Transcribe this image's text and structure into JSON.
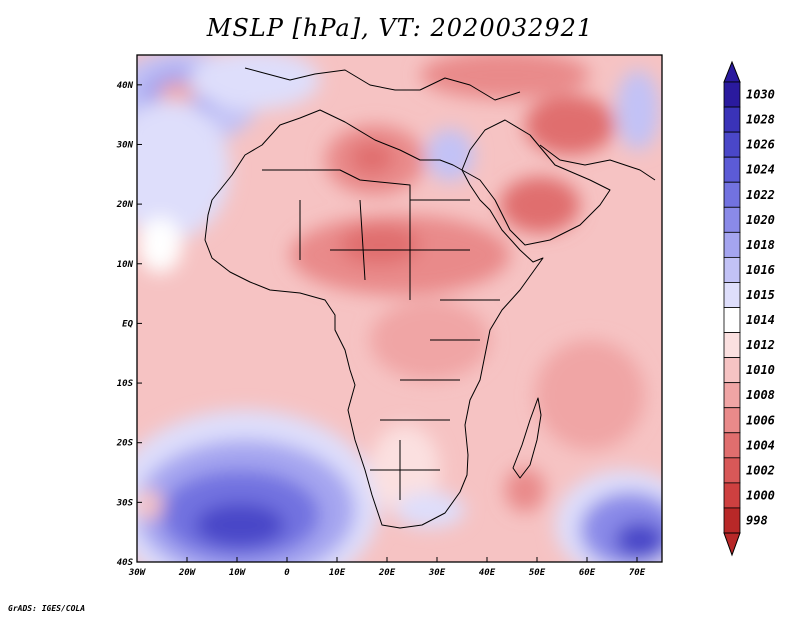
{
  "title": "MSLP [hPa], VT: 2020032921",
  "credit": "GrADS: IGES/COLA",
  "map": {
    "projection": "latlon",
    "lon_range": [
      -30,
      75
    ],
    "lat_range": [
      -40,
      45
    ],
    "lon_ticks": [
      {
        "value": -30,
        "label": "30W"
      },
      {
        "value": -20,
        "label": "20W"
      },
      {
        "value": -10,
        "label": "10W"
      },
      {
        "value": 0,
        "label": "0"
      },
      {
        "value": 10,
        "label": "10E"
      },
      {
        "value": 20,
        "label": "20E"
      },
      {
        "value": 30,
        "label": "30E"
      },
      {
        "value": 40,
        "label": "40E"
      },
      {
        "value": 50,
        "label": "50E"
      },
      {
        "value": 60,
        "label": "60E"
      },
      {
        "value": 70,
        "label": "70E"
      }
    ],
    "lat_ticks": [
      {
        "value": 40,
        "label": "40N"
      },
      {
        "value": 30,
        "label": "30N"
      },
      {
        "value": 20,
        "label": "20N"
      },
      {
        "value": 10,
        "label": "10N"
      },
      {
        "value": 0,
        "label": "EQ"
      },
      {
        "value": -10,
        "label": "10S"
      },
      {
        "value": -20,
        "label": "20S"
      },
      {
        "value": -30,
        "label": "30S"
      },
      {
        "value": -40,
        "label": "40S"
      }
    ]
  },
  "colorbar": {
    "levels": [
      {
        "label": "1030",
        "color": "#2a1a9e"
      },
      {
        "label": "1028",
        "color": "#3a33b8"
      },
      {
        "label": "1026",
        "color": "#4a47c8"
      },
      {
        "label": "1024",
        "color": "#5c5bd6"
      },
      {
        "label": "1022",
        "color": "#7272e0"
      },
      {
        "label": "1020",
        "color": "#8a8ae8"
      },
      {
        "label": "1018",
        "color": "#a5a5f0"
      },
      {
        "label": "1016",
        "color": "#c2c2f6"
      },
      {
        "label": "1015",
        "color": "#dedefb"
      },
      {
        "label": "1014",
        "color": "#ffffff"
      },
      {
        "label": "1012",
        "color": "#fbe0e0"
      },
      {
        "label": "1010",
        "color": "#f6c3c3"
      },
      {
        "label": "1008",
        "color": "#f0a5a5"
      },
      {
        "label": "1006",
        "color": "#e98a8a"
      },
      {
        "label": "1004",
        "color": "#e06e6e"
      },
      {
        "label": "1002",
        "color": "#d85858"
      },
      {
        "label": "1000",
        "color": "#ce4040"
      },
      {
        "label": "998",
        "color": "#b82828"
      }
    ],
    "top_arrow_color": "#2a1a9e",
    "bottom_arrow_color": "#b82828"
  }
}
